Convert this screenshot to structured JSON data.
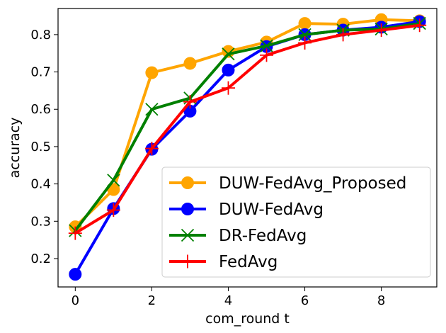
{
  "chart_data": {
    "type": "line",
    "title": "",
    "xlabel": "com_round t",
    "ylabel": "accuracy",
    "x": [
      0,
      1,
      2,
      3,
      4,
      5,
      6,
      7,
      8,
      9
    ],
    "xlim": [
      -0.45,
      9.45
    ],
    "ylim": [
      0.124,
      0.87
    ],
    "xticks": [
      0,
      2,
      4,
      6,
      8
    ],
    "yticks": [
      0.2,
      0.3,
      0.4,
      0.5,
      0.6,
      0.7,
      0.8
    ],
    "xtick_labels": [
      "0",
      "2",
      "4",
      "6",
      "8"
    ],
    "ytick_labels": [
      "0.2",
      "0.3",
      "0.4",
      "0.5",
      "0.6",
      "0.7",
      "0.8"
    ],
    "grid": false,
    "legend_position": "lower-right",
    "series": [
      {
        "name": "DUW-FedAvg_Proposed",
        "color": "#ffa500",
        "marker": "circle",
        "values": [
          0.285,
          0.385,
          0.698,
          0.723,
          0.755,
          0.78,
          0.83,
          0.828,
          0.84,
          0.837
        ]
      },
      {
        "name": "DUW-FedAvg",
        "color": "#0000ff",
        "marker": "circle",
        "values": [
          0.158,
          0.334,
          0.493,
          0.595,
          0.705,
          0.768,
          0.8,
          0.812,
          0.82,
          0.835
        ]
      },
      {
        "name": "DR-FedAvg",
        "color": "#008000",
        "marker": "x",
        "values": [
          0.275,
          0.41,
          0.6,
          0.63,
          0.748,
          0.77,
          0.8,
          0.812,
          0.815,
          0.83
        ]
      },
      {
        "name": "FedAvg",
        "color": "#ff0000",
        "marker": "plus",
        "values": [
          0.268,
          0.33,
          0.495,
          0.62,
          0.657,
          0.745,
          0.778,
          0.8,
          0.812,
          0.825
        ]
      }
    ]
  }
}
